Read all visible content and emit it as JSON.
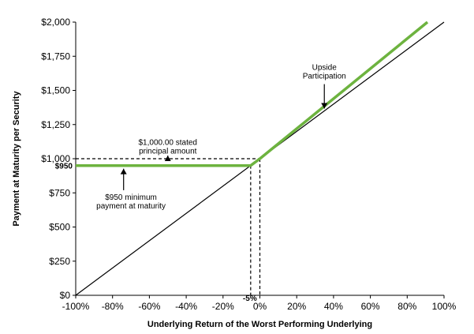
{
  "chart_data": {
    "type": "line",
    "xlabel": "Underlying Return of the Worst Performing Underlying",
    "ylabel": "Payment at Maturity per Security",
    "xlim": [
      -100,
      100
    ],
    "ylim": [
      0,
      2000
    ],
    "x_ticks": [
      -100,
      -80,
      -60,
      -40,
      -20,
      0,
      20,
      40,
      60,
      80,
      100
    ],
    "x_tick_labels": [
      "-100%",
      "-80%",
      "-60%",
      "-40%",
      "-20%",
      "0%",
      "20%",
      "40%",
      "60%",
      "80%",
      "100%"
    ],
    "y_ticks": [
      0,
      250,
      500,
      750,
      1000,
      1250,
      1500,
      1750,
      2000
    ],
    "y_tick_labels": [
      "$0",
      "$250",
      "$500",
      "$750",
      "$1,000",
      "$1,250",
      "$1,500",
      "$1,750",
      "$2,000"
    ],
    "series": [
      {
        "color": "#000000",
        "x": [
          -100,
          100
        ],
        "y": [
          0,
          2000
        ]
      },
      {
        "color": "#6db33f",
        "x": [
          -100,
          -5,
          0,
          91
        ],
        "y": [
          950,
          950,
          1000,
          2000
        ]
      }
    ],
    "reference_lines": {
      "principal_y": 1000,
      "min_payment_y": 950,
      "buffer_x": -5,
      "zero_x": 0
    },
    "labels": {
      "min_payment_value": "$950",
      "buffer_value": "-5%"
    },
    "annotations": [
      {
        "id": "principal",
        "lines": [
          "$1,000.00 stated",
          "principal amount"
        ],
        "x": -50,
        "y": 1100
      },
      {
        "id": "minimum",
        "lines": [
          "$950 minimum",
          "payment at maturity"
        ],
        "x": -70,
        "y": 700
      },
      {
        "id": "upside",
        "lines": [
          "Upside",
          "Participation"
        ],
        "x": 35,
        "y": 1650
      }
    ],
    "colors": {
      "payoff": "#6db33f",
      "reference": "#000000"
    }
  }
}
